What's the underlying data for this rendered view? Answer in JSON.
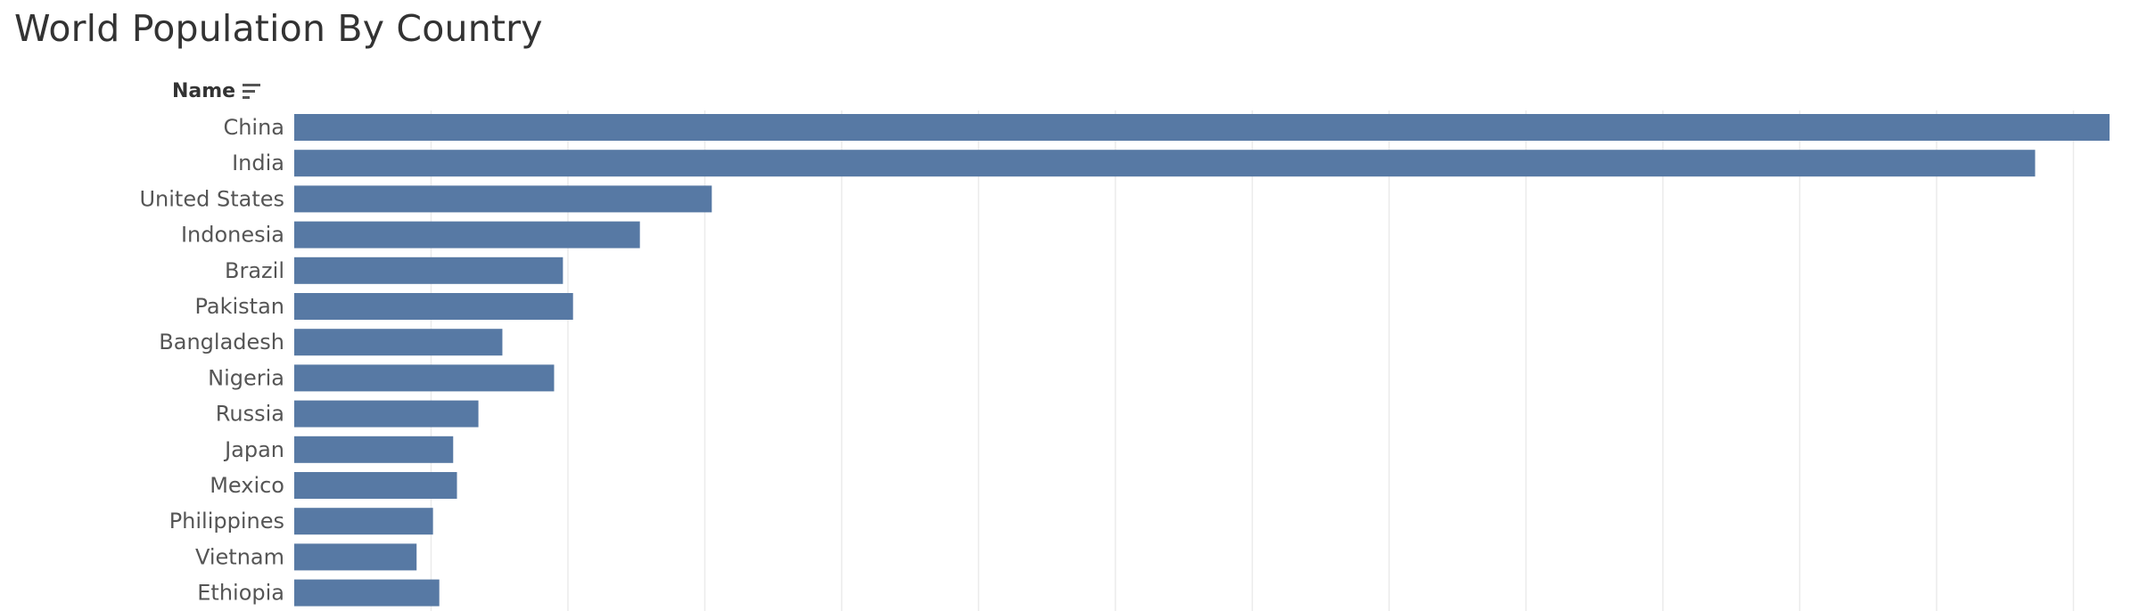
{
  "title": "World Population By Country",
  "column_header": "Name",
  "sort_icon": "sort-descending-icon",
  "colors": {
    "bar": "#5779a4",
    "grid": "#ebebeb",
    "title": "#333333",
    "label": "#555555"
  },
  "chart_data": {
    "type": "bar",
    "orientation": "horizontal",
    "title": "World Population By Country",
    "xlabel": "",
    "ylabel": "Name",
    "grid": true,
    "categories": [
      "China",
      "India",
      "United States",
      "Indonesia",
      "Brazil",
      "Pakistan",
      "Bangladesh",
      "Nigeria",
      "Russia",
      "Japan",
      "Mexico",
      "Philippines",
      "Vietnam",
      "Ethiopia"
    ],
    "values": [
      1439,
      1380,
      331,
      274,
      213,
      221,
      165,
      206,
      146,
      126,
      129,
      110,
      97,
      115
    ],
    "xlim": [
      0,
      1439
    ]
  }
}
